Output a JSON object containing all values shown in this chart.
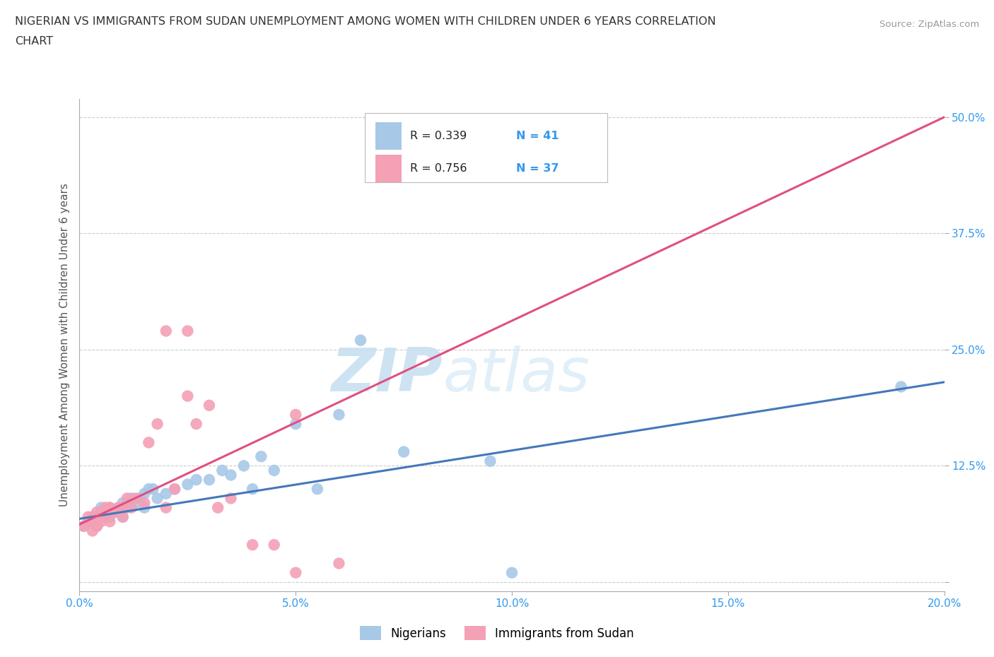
{
  "title_line1": "NIGERIAN VS IMMIGRANTS FROM SUDAN UNEMPLOYMENT AMONG WOMEN WITH CHILDREN UNDER 6 YEARS CORRELATION",
  "title_line2": "CHART",
  "source": "Source: ZipAtlas.com",
  "ylabel": "Unemployment Among Women with Children Under 6 years",
  "xlim": [
    0.0,
    0.2
  ],
  "ylim": [
    -0.01,
    0.52
  ],
  "xticks": [
    0.0,
    0.05,
    0.1,
    0.15,
    0.2
  ],
  "yticks": [
    0.0,
    0.125,
    0.25,
    0.375,
    0.5
  ],
  "xtick_labels": [
    "0.0%",
    "5.0%",
    "10.0%",
    "15.0%",
    "20.0%"
  ],
  "ytick_labels": [
    "",
    "12.5%",
    "25.0%",
    "37.5%",
    "50.0%"
  ],
  "r1": "0.339",
  "n1": "41",
  "r2": "0.756",
  "n2": "37",
  "legend_label1": "Nigerians",
  "legend_label2": "Immigrants from Sudan",
  "color_blue": "#a8c8e8",
  "color_pink": "#f4a0b5",
  "color_blue_line": "#4477bb",
  "color_pink_line": "#e05080",
  "watermark_zip": "ZIP",
  "watermark_atlas": "atlas",
  "nigerians_x": [
    0.001,
    0.002,
    0.003,
    0.004,
    0.005,
    0.005,
    0.006,
    0.007,
    0.007,
    0.008,
    0.009,
    0.01,
    0.01,
    0.011,
    0.012,
    0.013,
    0.014,
    0.015,
    0.015,
    0.016,
    0.017,
    0.018,
    0.02,
    0.022,
    0.025,
    0.027,
    0.03,
    0.033,
    0.035,
    0.038,
    0.04,
    0.042,
    0.045,
    0.05,
    0.055,
    0.06,
    0.065,
    0.075,
    0.095,
    0.1,
    0.19
  ],
  "nigerians_y": [
    0.06,
    0.065,
    0.07,
    0.06,
    0.07,
    0.08,
    0.075,
    0.07,
    0.08,
    0.075,
    0.08,
    0.07,
    0.085,
    0.08,
    0.09,
    0.085,
    0.09,
    0.08,
    0.095,
    0.1,
    0.1,
    0.09,
    0.095,
    0.1,
    0.105,
    0.11,
    0.11,
    0.12,
    0.115,
    0.125,
    0.1,
    0.135,
    0.12,
    0.17,
    0.1,
    0.18,
    0.26,
    0.14,
    0.13,
    0.01,
    0.21
  ],
  "sudan_x": [
    0.001,
    0.002,
    0.002,
    0.003,
    0.003,
    0.004,
    0.004,
    0.005,
    0.005,
    0.006,
    0.006,
    0.007,
    0.007,
    0.008,
    0.009,
    0.01,
    0.01,
    0.011,
    0.012,
    0.013,
    0.015,
    0.016,
    0.018,
    0.02,
    0.022,
    0.025,
    0.027,
    0.03,
    0.032,
    0.035,
    0.04,
    0.045,
    0.05,
    0.06,
    0.02,
    0.025,
    0.05
  ],
  "sudan_y": [
    0.06,
    0.065,
    0.07,
    0.055,
    0.07,
    0.06,
    0.075,
    0.065,
    0.075,
    0.07,
    0.08,
    0.065,
    0.08,
    0.075,
    0.08,
    0.07,
    0.08,
    0.09,
    0.08,
    0.09,
    0.085,
    0.15,
    0.17,
    0.08,
    0.1,
    0.2,
    0.17,
    0.19,
    0.08,
    0.09,
    0.04,
    0.04,
    0.01,
    0.02,
    0.27,
    0.27,
    0.18
  ]
}
